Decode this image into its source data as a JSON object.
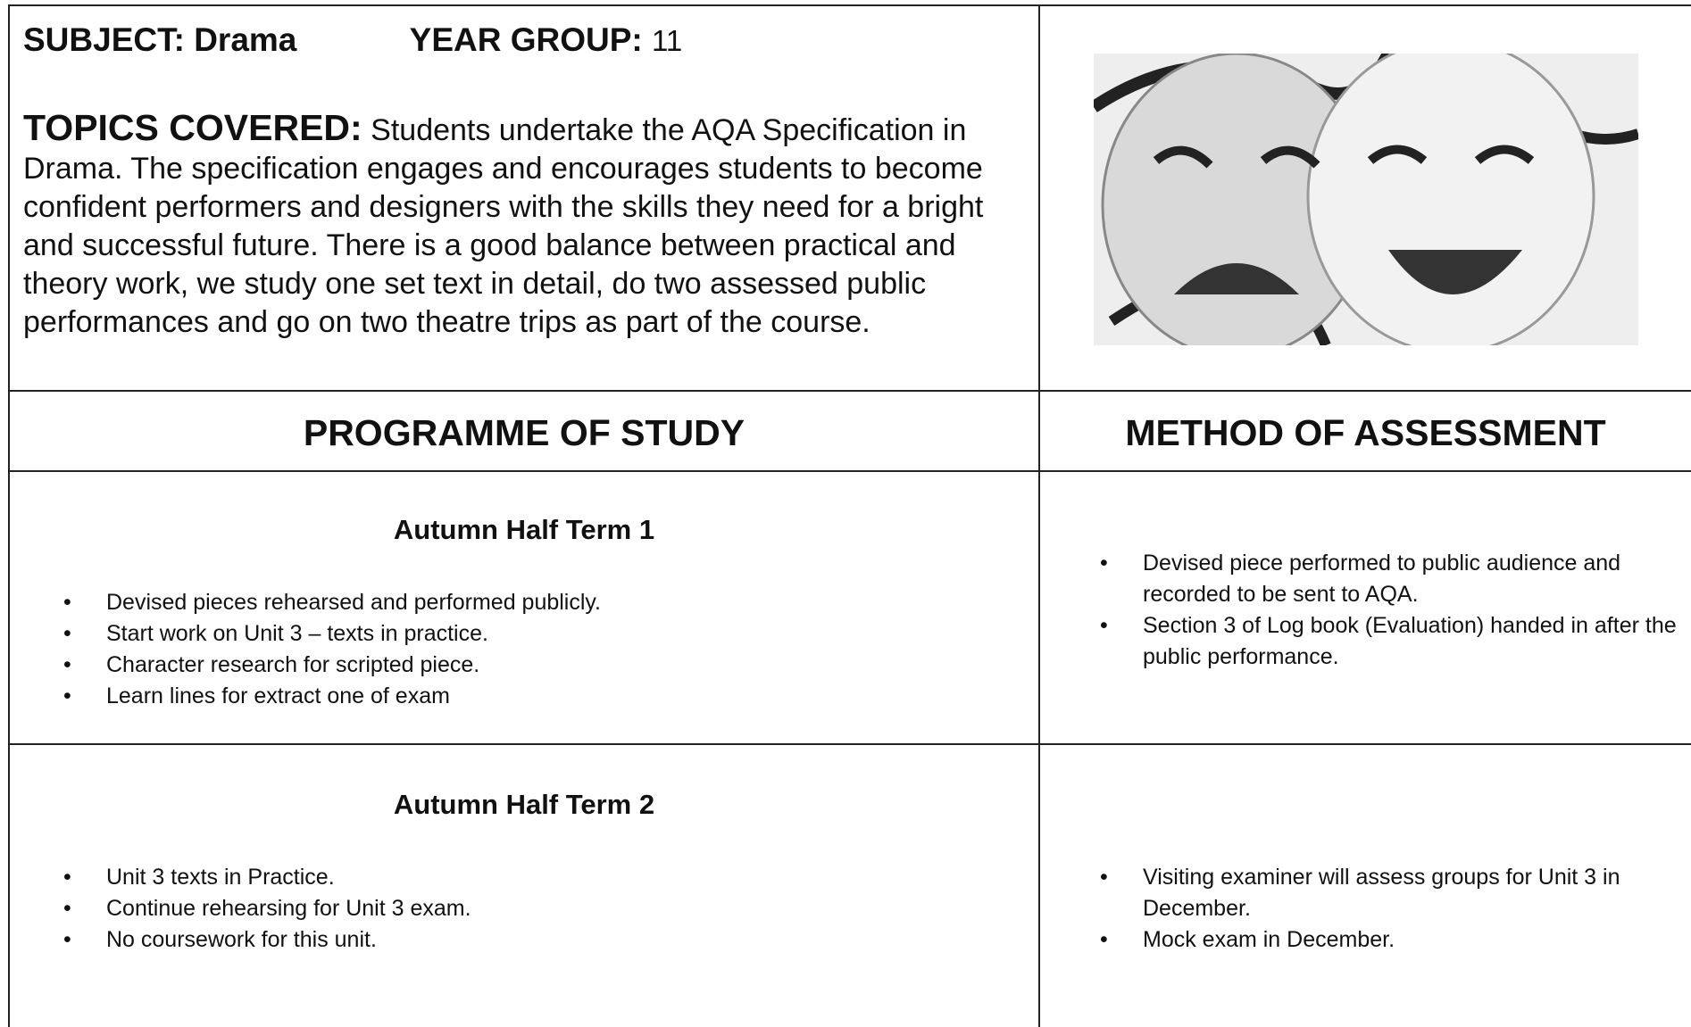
{
  "header": {
    "subject": "SUBJECT: Drama",
    "year_group_label": "YEAR GROUP:",
    "year_group": "11",
    "topics_label": "TOPICS COVERED:",
    "topics_text": "Students undertake the AQA Specification in Drama. The specification engages and encourages students to become confident performers and designers with the skills they need for a bright and successful future. There is a good balance between practical and theory work, we study one set text in detail, do two assessed public performances and go on two theatre trips as part of the course."
  },
  "table": {
    "headers": [
      "PROGRAMME OF STUDY",
      "METHOD OF ASSESSMENT"
    ],
    "rows": [
      {
        "term": "Autumn Half Term 1",
        "study": [
          "Devised pieces rehearsed and performed publicly.",
          "Start work on Unit 3 – texts in practice.",
          "Character research for scripted piece.",
          "Learn lines for extract one of exam"
        ],
        "assessment": [
          "Devised piece performed to public audience and recorded to be sent to AQA.",
          "Section 3 of Log book (Evaluation) handed in after the public performance."
        ]
      },
      {
        "term": "Autumn Half Term 2",
        "study": [
          "Unit 3 texts in Practice.",
          "Continue rehearsing for Unit 3 exam.",
          "No coursework for this unit."
        ],
        "assessment": [
          "Visiting examiner will assess groups for Unit 3 in December.",
          "Mock exam in December."
        ]
      }
    ]
  }
}
